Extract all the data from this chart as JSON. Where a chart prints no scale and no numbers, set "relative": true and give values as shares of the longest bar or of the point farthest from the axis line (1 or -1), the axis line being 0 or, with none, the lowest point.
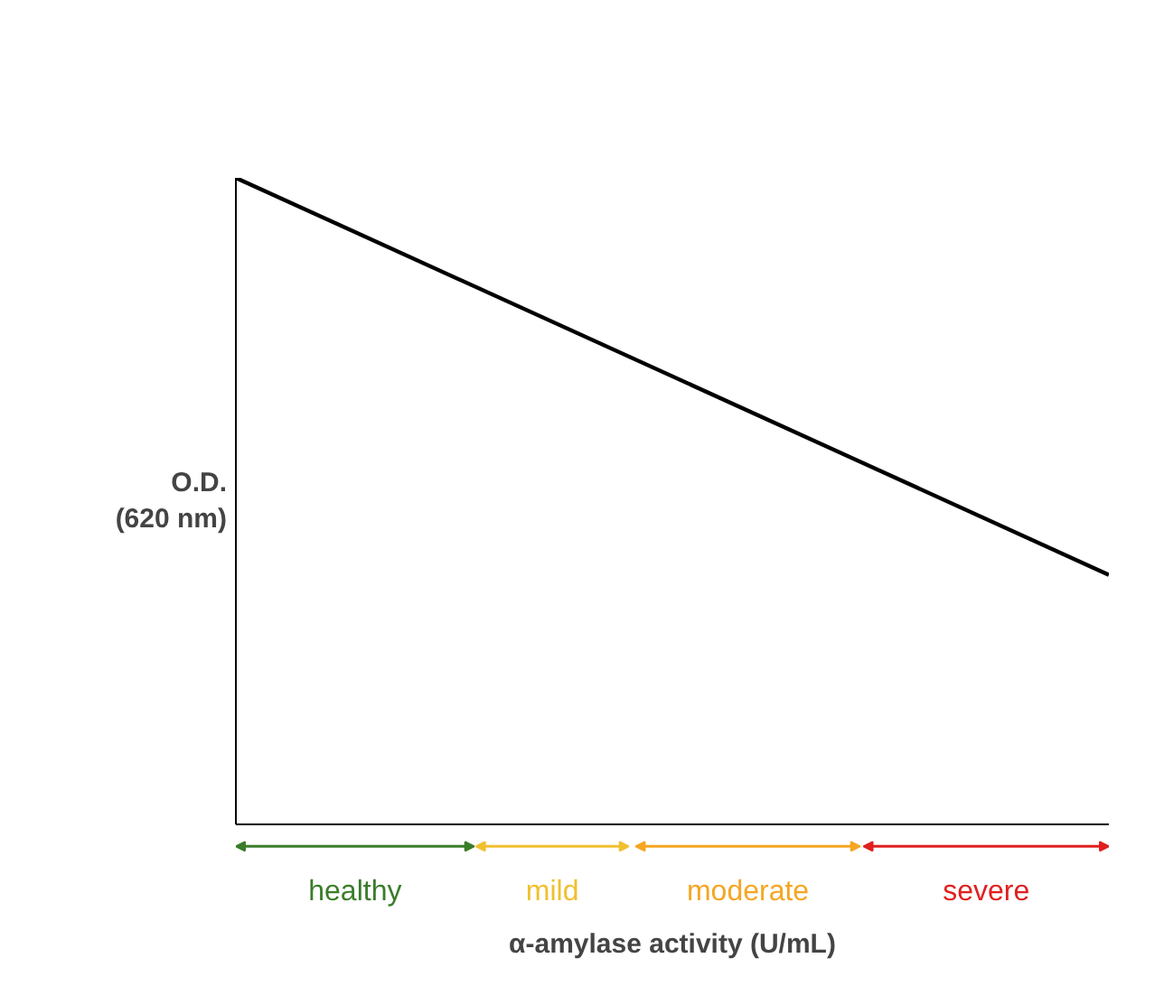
{
  "chart_data": {
    "type": "line",
    "relative": true,
    "xlabel": "α-amylase activity (U/mL)",
    "ylabel": "O.D.\n(620 nm)",
    "categories": [
      null,
      null
    ],
    "series": [
      {
        "color": "#000000",
        "values": [
          1,
          0.386
        ]
      }
    ],
    "annotations": [
      "healthy",
      "mild",
      "moderate",
      "severe"
    ]
  }
}
